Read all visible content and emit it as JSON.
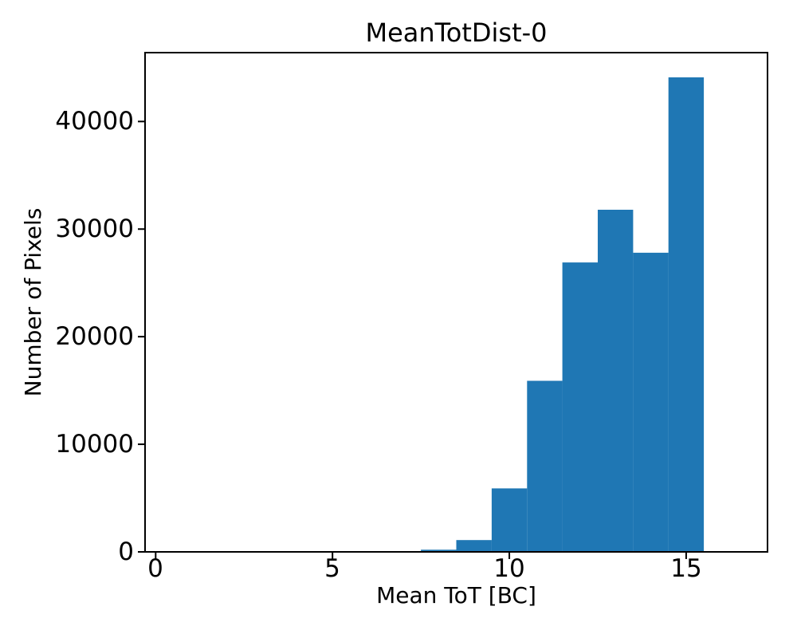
{
  "figure": {
    "background": "#ffffff"
  },
  "chart_data": {
    "type": "bar",
    "chart_kind": "histogram",
    "title": "MeanTotDist-0",
    "xlabel": "Mean ToT [BC]",
    "ylabel": "Number of Pixels",
    "bar_color": "#1f77b4",
    "text_color": "#000000",
    "bin_edges": [
      7.5,
      8.5,
      9.5,
      10.5,
      11.5,
      12.5,
      13.5,
      14.5,
      15.5
    ],
    "counts": [
      200,
      1100,
      5900,
      15900,
      26900,
      31800,
      27800,
      44100
    ],
    "xlim": [
      -0.3,
      17.3
    ],
    "ylim": [
      0,
      46400
    ],
    "xticks": [
      0,
      5,
      10,
      15
    ],
    "yticks": [
      0,
      10000,
      20000,
      30000,
      40000
    ],
    "grid": false,
    "legend_position": "none"
  }
}
